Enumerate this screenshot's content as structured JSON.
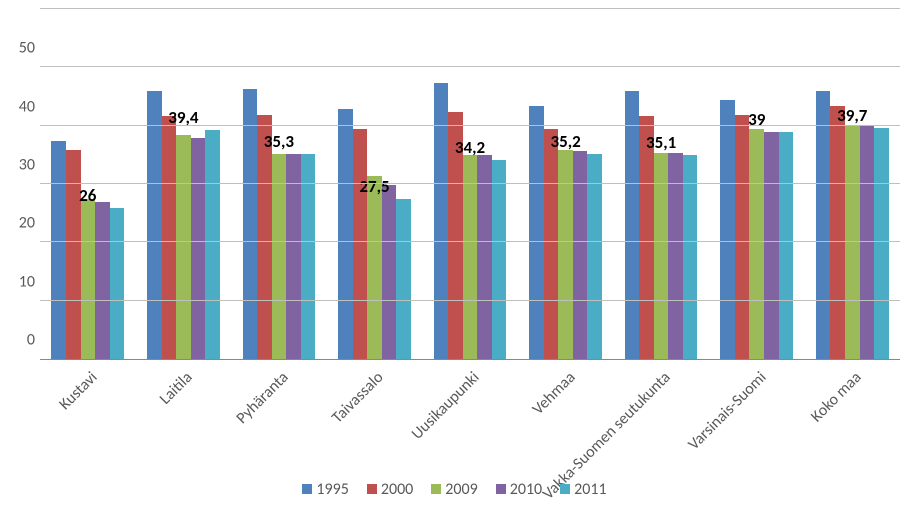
{
  "chart": {
    "type": "bar",
    "ylim": [
      0,
      60
    ],
    "ytick_step": 10,
    "yticks": [
      0,
      10,
      20,
      30,
      40,
      50,
      60
    ],
    "background_color": "#ffffff",
    "grid_color": "#bfbfbf",
    "axis_color": "#888888",
    "label_fontsize": 16,
    "label_color": "#595959",
    "value_label_fontsize": 17,
    "value_label_fontweight": "bold",
    "value_label_color": "#000000",
    "bar_group_inner_padding_pct": 12,
    "categories": [
      "Kustavi",
      "Laitila",
      "Pyhäranta",
      "Taivassalo",
      "Uusikaupunki",
      "Vehmaa",
      "Vakka-Suomen seutukunta",
      "Varsinais-Suomi",
      "Koko maa"
    ],
    "series": [
      {
        "name": "1995",
        "color": "#4f81bd",
        "values": [
          37.5,
          46.0,
          46.5,
          43.0,
          47.5,
          43.5,
          46.0,
          44.5,
          46.0
        ]
      },
      {
        "name": "2000",
        "color": "#c0504d",
        "values": [
          36.0,
          41.8,
          42.0,
          39.5,
          42.5,
          39.5,
          41.8,
          42.0,
          43.5
        ]
      },
      {
        "name": "2009",
        "color": "#9bbb59",
        "values": [
          27.5,
          38.5,
          35.3,
          31.5,
          35.0,
          36.0,
          35.5,
          39.5,
          40.0
        ]
      },
      {
        "name": "2010",
        "color": "#8064a2",
        "values": [
          27.0,
          38.0,
          35.3,
          30.0,
          35.0,
          35.8,
          35.5,
          39.0,
          40.0
        ]
      },
      {
        "name": "2011",
        "color": "#4bacc6",
        "values": [
          26.0,
          39.4,
          35.3,
          27.5,
          34.2,
          35.2,
          35.1,
          39.0,
          39.7
        ]
      }
    ],
    "value_labels_series_index": 4,
    "value_labels": [
      "26",
      "39,4",
      "35,3",
      "27,5",
      "34,2",
      "35,2",
      "35,1",
      "39",
      "39,7"
    ],
    "legend_position": "bottom",
    "legend_marker_size": 10,
    "x_label_rotation_deg": -45
  }
}
